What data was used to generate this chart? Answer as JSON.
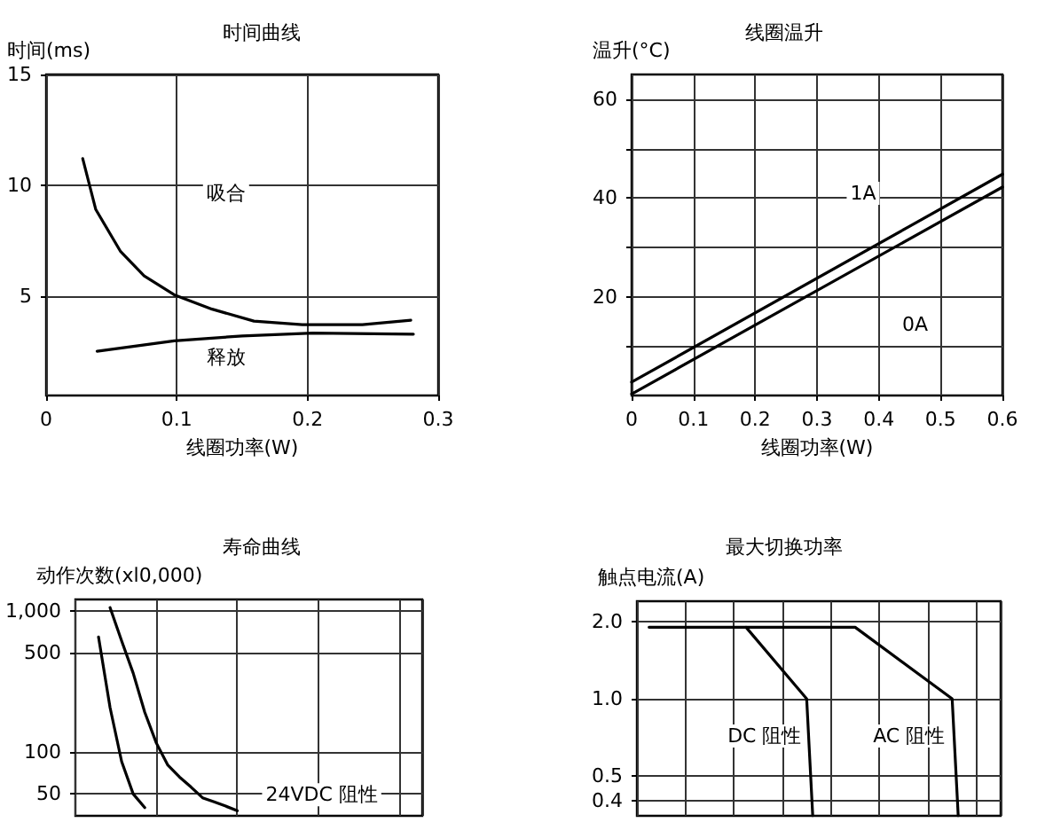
{
  "chart_data": [
    {
      "type": "line",
      "title": "时间曲线",
      "xlabel": "线圈功率(W)",
      "ylabel": "时间(ms)",
      "xlim": [
        0,
        0.3
      ],
      "xticks": [
        0,
        0.1,
        0.2,
        0.3
      ],
      "ylim": [
        0.5,
        15
      ],
      "yticks": [
        5,
        10,
        15
      ],
      "grid": true,
      "series": [
        {
          "color": "#000000",
          "x": [
            0.028,
            0.038,
            0.057,
            0.075,
            0.098,
            0.127,
            0.159,
            0.196,
            0.242,
            0.279
          ],
          "values": [
            11.2,
            8.9,
            7.0,
            5.9,
            5.05,
            4.4,
            3.86,
            3.7,
            3.7,
            3.9
          ]
        },
        {
          "color": "#000000",
          "x": [
            0.039,
            0.098,
            0.15,
            0.204,
            0.281
          ],
          "values": [
            2.5,
            2.97,
            3.19,
            3.32,
            3.27
          ]
        }
      ],
      "annotations": [
        "吸合",
        "释放"
      ]
    },
    {
      "type": "line",
      "title": "线圈温升",
      "xlabel": "线圈功率(W)",
      "ylabel": "温升(°C)",
      "xlim": [
        0,
        0.6
      ],
      "xticks": [
        0,
        0.1,
        0.2,
        0.3,
        0.4,
        0.5,
        0.6
      ],
      "ylim": [
        0,
        65
      ],
      "yticks": [
        {
          "value": 10,
          "label": null
        },
        20,
        {
          "value": 30,
          "label": null
        },
        40,
        {
          "value": 50,
          "label": null
        },
        60
      ],
      "grid": true,
      "series": [
        {
          "color": "#000000",
          "x": [
            0,
            0.6
          ],
          "values": [
            2.7,
            44.8
          ]
        },
        {
          "color": "#000000",
          "x": [
            0,
            0.6
          ],
          "values": [
            0.3,
            42.2
          ]
        }
      ],
      "annotations": [
        "1A",
        "0A"
      ]
    },
    {
      "type": "line",
      "title": "寿命曲线",
      "ylabel": "动作次数(xl0,000)",
      "log": "y",
      "ylim": [
        35,
        1200
      ],
      "yticks": [
        50,
        100,
        500,
        {
          "value": 1000,
          "label": "1,000"
        }
      ],
      "grid": true,
      "tick_labels": "y",
      "categories": [
        null,
        null,
        null,
        null,
        null,
        null,
        null,
        null,
        null,
        null,
        null,
        null,
        null,
        null,
        null,
        null,
        null,
        null,
        null,
        null,
        null,
        null,
        null,
        null,
        null,
        null,
        null,
        null,
        null,
        null,
        null
      ],
      "series": [
        {
          "color": "#000000",
          "values": [
            null,
            null,
            650,
            205,
            85,
            50,
            40,
            null,
            null,
            null,
            null,
            null,
            null,
            null,
            null,
            null,
            null,
            null,
            null,
            null,
            null,
            null,
            null,
            null,
            null,
            null,
            null,
            null,
            null,
            null,
            null
          ]
        },
        {
          "name": "24VDC 阻性",
          "color": "#000000",
          "values": [
            null,
            null,
            null,
            1050,
            610,
            360,
            190,
            115,
            80,
            66,
            56,
            47,
            44,
            41,
            38,
            null,
            null,
            null,
            null,
            null,
            null,
            null,
            null,
            null,
            null,
            null,
            null,
            null,
            null,
            null,
            null
          ]
        }
      ]
    },
    {
      "type": "line",
      "title": "最大切换功率",
      "ylabel": "触点电流(A)",
      "log": "y",
      "ylim": [
        0.35,
        2.4
      ],
      "yticks": [
        0.4,
        {
          "value": 0.5,
          "label": "0.5"
        },
        {
          "value": 1,
          "label": "1.0"
        },
        {
          "value": 2,
          "label": "2.0"
        }
      ],
      "grid": true,
      "tick_labels": "y",
      "categories": [
        null,
        null,
        null,
        null,
        null,
        null,
        null,
        null,
        null,
        null,
        null,
        null,
        null,
        null,
        null,
        null,
        null,
        null,
        null,
        null,
        null,
        null,
        null,
        null,
        null,
        null,
        null,
        null,
        null,
        null,
        null,
        null,
        null,
        null,
        null,
        null,
        null,
        null,
        null,
        null,
        null,
        null,
        null,
        null,
        null,
        null,
        null,
        null,
        null,
        null,
        null,
        null,
        null,
        null,
        null,
        null,
        null,
        null,
        null,
        null,
        null
      ],
      "series": [
        {
          "name": "DC 阻性",
          "color": "#000000",
          "values": [
            null,
            null,
            1.9,
            null,
            null,
            null,
            null,
            null,
            null,
            null,
            null,
            null,
            null,
            null,
            null,
            null,
            null,
            null,
            1.9,
            null,
            null,
            null,
            null,
            null,
            null,
            null,
            null,
            null,
            1.0,
            0.35,
            null,
            null,
            null,
            null,
            null,
            null,
            null,
            null,
            null,
            null,
            null,
            null,
            null,
            null,
            null,
            null,
            null,
            null,
            null,
            null,
            null,
            null,
            null,
            null,
            null,
            null,
            null,
            null,
            null,
            null,
            null
          ]
        },
        {
          "name": "AC 阻性",
          "color": "#000000",
          "values": [
            null,
            null,
            null,
            null,
            null,
            null,
            null,
            null,
            null,
            null,
            null,
            null,
            null,
            null,
            null,
            null,
            null,
            null,
            1.9,
            null,
            null,
            null,
            null,
            null,
            null,
            null,
            null,
            null,
            null,
            null,
            null,
            null,
            null,
            null,
            null,
            null,
            1.9,
            null,
            null,
            null,
            null,
            null,
            null,
            null,
            null,
            null,
            null,
            null,
            null,
            null,
            null,
            null,
            1.0,
            0.35,
            null,
            null,
            null,
            null,
            null,
            null,
            null
          ]
        }
      ]
    }
  ]
}
